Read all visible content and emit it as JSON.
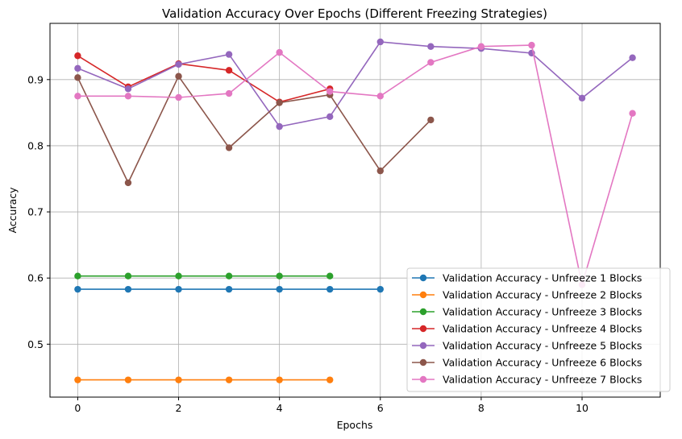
{
  "chart_data": {
    "type": "line",
    "title": "Validation Accuracy Over Epochs (Different Freezing Strategies)",
    "xlabel": "Epochs",
    "ylabel": "Accuracy",
    "xlim": [
      -0.55,
      11.55
    ],
    "ylim": [
      0.42,
      0.985
    ],
    "xticks": [
      0,
      2,
      4,
      6,
      8,
      10
    ],
    "yticks": [
      0.5,
      0.6,
      0.7,
      0.8,
      0.9
    ],
    "ytick_labels": [
      "0.5",
      "0.6",
      "0.7",
      "0.8",
      "0.9"
    ],
    "grid": true,
    "legend_position": "lower-right",
    "series": [
      {
        "name": "Validation Accuracy - Unfreeze 1 Blocks",
        "color": "#1f77b4",
        "x": [
          0,
          1,
          2,
          3,
          4,
          5,
          6
        ],
        "values": [
          0.583,
          0.583,
          0.583,
          0.583,
          0.583,
          0.583,
          0.583
        ]
      },
      {
        "name": "Validation Accuracy - Unfreeze 2 Blocks",
        "color": "#ff7f0e",
        "x": [
          0,
          1,
          2,
          3,
          4,
          5
        ],
        "values": [
          0.446,
          0.446,
          0.446,
          0.446,
          0.446,
          0.446
        ]
      },
      {
        "name": "Validation Accuracy - Unfreeze 3 Blocks",
        "color": "#2ca02c",
        "x": [
          0,
          1,
          2,
          3,
          4,
          5
        ],
        "values": [
          0.603,
          0.603,
          0.603,
          0.603,
          0.603,
          0.603
        ]
      },
      {
        "name": "Validation Accuracy - Unfreeze 4 Blocks",
        "color": "#d62728",
        "x": [
          0,
          1,
          2,
          3,
          4,
          5
        ],
        "values": [
          0.936,
          0.889,
          0.924,
          0.914,
          0.866,
          0.886
        ]
      },
      {
        "name": "Validation Accuracy - Unfreeze 5 Blocks",
        "color": "#9467bd",
        "x": [
          0,
          1,
          2,
          3,
          4,
          5,
          6,
          7,
          8,
          9,
          10,
          11
        ],
        "values": [
          0.917,
          0.886,
          0.923,
          0.938,
          0.829,
          0.844,
          0.957,
          0.95,
          0.947,
          0.94,
          0.872,
          0.933
        ]
      },
      {
        "name": "Validation Accuracy - Unfreeze 6 Blocks",
        "color": "#8c564b",
        "x": [
          0,
          1,
          2,
          3,
          4,
          5,
          6,
          7
        ],
        "values": [
          0.903,
          0.744,
          0.905,
          0.797,
          0.865,
          0.877,
          0.762,
          0.839
        ]
      },
      {
        "name": "Validation Accuracy - Unfreeze 7 Blocks",
        "color": "#e377c2",
        "x": [
          0,
          1,
          2,
          3,
          4,
          5,
          6,
          7,
          8,
          9,
          10,
          11
        ],
        "values": [
          0.875,
          0.875,
          0.873,
          0.879,
          0.941,
          0.882,
          0.875,
          0.926,
          0.95,
          0.952,
          0.59,
          0.849
        ]
      }
    ]
  }
}
